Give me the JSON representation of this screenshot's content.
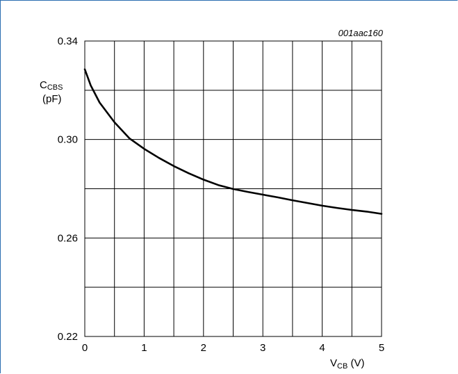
{
  "chart_data": {
    "type": "line",
    "figure_id": "001aac160",
    "xlabel": {
      "main": "V",
      "sub": "CB",
      "unit": " (V)"
    },
    "ylabel": {
      "main": "C",
      "sub": "CBS",
      "unit": "(pF)"
    },
    "xlim": [
      0,
      5
    ],
    "ylim": [
      0.22,
      0.34
    ],
    "x_ticks": [
      "0",
      "1",
      "2",
      "3",
      "4",
      "5"
    ],
    "y_ticks": [
      "0.22",
      "0.26",
      "0.30",
      "0.34"
    ],
    "grid": true,
    "series": [
      {
        "color": "#000000",
        "x": [
          0,
          0.1,
          0.25,
          0.5,
          0.75,
          1.0,
          1.25,
          1.5,
          1.75,
          2.0,
          2.25,
          2.5,
          2.75,
          3.0,
          3.25,
          3.5,
          3.75,
          4.0,
          4.25,
          4.5,
          4.75,
          5.0
        ],
        "y": [
          0.3285,
          0.322,
          0.315,
          0.307,
          0.3005,
          0.2962,
          0.2925,
          0.2892,
          0.2863,
          0.2837,
          0.2815,
          0.2799,
          0.2787,
          0.2776,
          0.2765,
          0.2753,
          0.2742,
          0.2731,
          0.2722,
          0.2714,
          0.2707,
          0.2698
        ]
      }
    ]
  }
}
